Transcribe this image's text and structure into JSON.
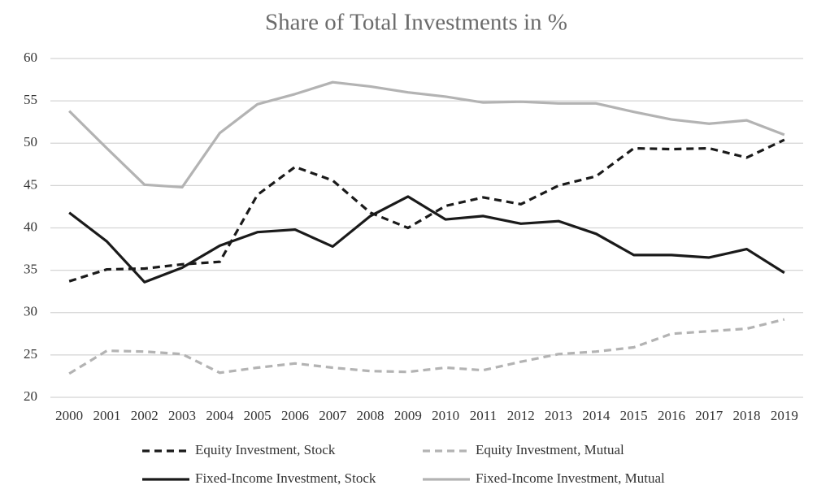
{
  "chart_data": {
    "type": "line",
    "title": "Share of Total Investments in %",
    "categories": [
      "2000",
      "2001",
      "2002",
      "2003",
      "2004",
      "2005",
      "2006",
      "2007",
      "2008",
      "2009",
      "2010",
      "2011",
      "2012",
      "2013",
      "2014",
      "2015",
      "2016",
      "2017",
      "2018",
      "2019"
    ],
    "ylim": [
      20,
      60
    ],
    "yticks": [
      20,
      25,
      30,
      35,
      40,
      45,
      50,
      55,
      60
    ],
    "grid": true,
    "legend": "bottom",
    "series": [
      {
        "name": "Equity Investment, Stock",
        "color": "#1a1a1a",
        "line_style": "dashed",
        "values": [
          33.7,
          35.1,
          35.2,
          35.7,
          36.0,
          43.9,
          47.2,
          45.6,
          41.8,
          40.0,
          42.6,
          43.6,
          42.8,
          45.0,
          46.1,
          49.4,
          49.3,
          49.4,
          48.3,
          50.4
        ]
      },
      {
        "name": "Equity Investment, Mutual",
        "color": "#b3b3b3",
        "line_style": "dashed",
        "values": [
          22.8,
          25.5,
          25.4,
          25.1,
          22.9,
          23.5,
          24.0,
          23.5,
          23.1,
          23.0,
          23.5,
          23.2,
          24.2,
          25.1,
          25.4,
          25.9,
          27.5,
          27.8,
          28.1,
          29.2
        ]
      },
      {
        "name": "Fixed-Income Investment, Stock",
        "color": "#1a1a1a",
        "line_style": "solid",
        "values": [
          41.8,
          38.4,
          33.6,
          35.3,
          37.9,
          39.5,
          39.8,
          37.8,
          41.4,
          43.7,
          41.0,
          41.4,
          40.5,
          40.8,
          39.3,
          36.8,
          36.8,
          36.5,
          37.5,
          34.7
        ]
      },
      {
        "name": "Fixed-Income Investment, Mutual",
        "color": "#b3b3b3",
        "line_style": "solid",
        "values": [
          53.8,
          49.4,
          45.1,
          44.8,
          51.2,
          54.6,
          55.8,
          57.2,
          56.7,
          56.0,
          55.5,
          54.8,
          54.9,
          54.7,
          54.7,
          53.7,
          52.8,
          52.3,
          52.7,
          51.0
        ]
      }
    ]
  }
}
